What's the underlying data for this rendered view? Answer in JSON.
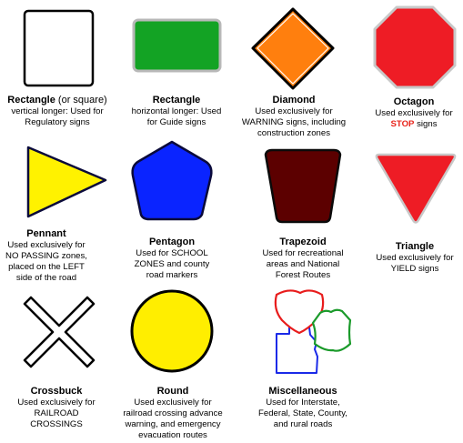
{
  "signs": [
    {
      "title": "Rectangle",
      "title_suffix": "(or square)",
      "lines": [
        "vertical longer: Used for",
        "Regulatory signs"
      ]
    },
    {
      "title": "Rectangle",
      "lines": [
        "horizontal longer: Used",
        "for Guide signs"
      ]
    },
    {
      "title": "Diamond",
      "lines": [
        "Used exclusively for",
        "WARNING signs, including",
        "construction zones"
      ]
    },
    {
      "title": "Octagon",
      "lines": [
        "Used exclusively for"
      ],
      "stop_word": "STOP",
      "stop_rest": "signs"
    },
    {
      "title": "Pennant",
      "lines": [
        "Used exclusively for",
        "NO PASSING zones,",
        "placed on the LEFT",
        "side of the road"
      ]
    },
    {
      "title": "Pentagon",
      "lines": [
        "Used for SCHOOL",
        "ZONES and county",
        "road markers"
      ]
    },
    {
      "title": "Trapezoid",
      "lines": [
        "Used for recreational",
        "areas and National",
        "Forest Routes"
      ]
    },
    {
      "title": "Triangle",
      "lines": [
        "Used exclusively for",
        "YIELD signs"
      ]
    },
    {
      "title": "Crossbuck",
      "lines": [
        "Used exclusively for",
        "RAILROAD",
        "CROSSINGS"
      ]
    },
    {
      "title": "Round",
      "lines": [
        "Used exclusively for",
        "railroad crossing advance",
        "warning, and emergency",
        "evacuation routes"
      ]
    },
    {
      "title": "Miscellaneous",
      "lines": [
        "Used for Interstate,",
        "Federal, State, County,",
        "and rural roads"
      ]
    }
  ],
  "colors": {
    "guide_green": "#13a324",
    "warning_orange": "#ff7f0e",
    "stop_red": "#ee1c25",
    "pennant_yellow": "#fff200",
    "school_blue": "#0a24ff",
    "recreation_brown": "#5c0000",
    "round_yellow": "#ffee00",
    "misc_red": "#e81c1c",
    "misc_green": "#1a9a2a",
    "misc_blue": "#1a2ae8"
  }
}
